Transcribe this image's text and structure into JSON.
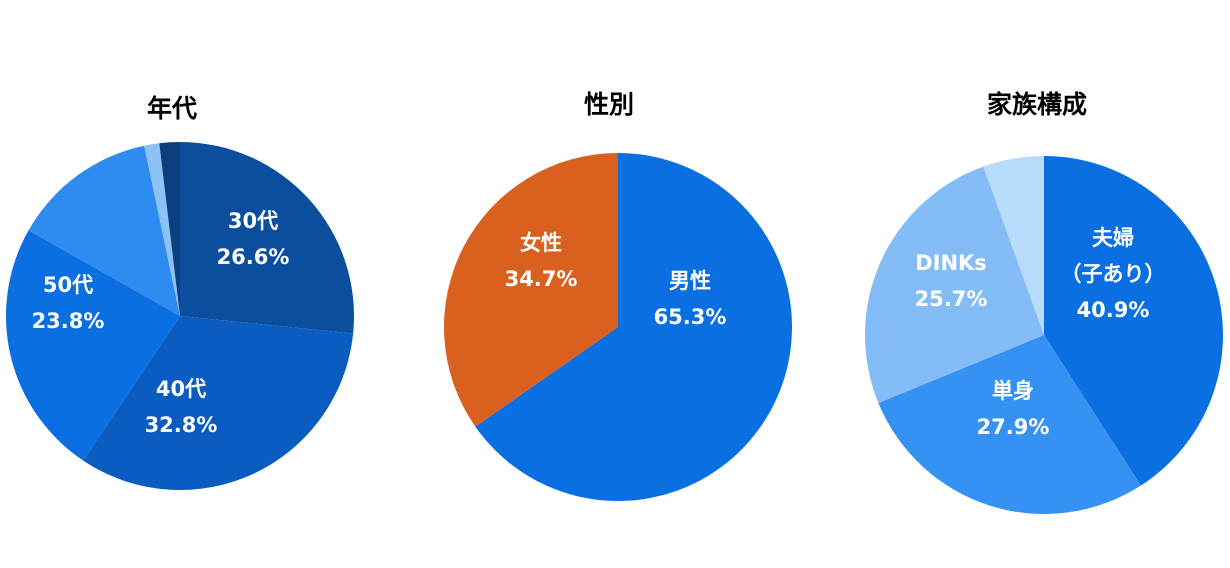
{
  "chart_data": [
    {
      "type": "pie",
      "title": "年代",
      "slices": [
        {
          "label": [
            "30代",
            "26.6%"
          ],
          "value": 26.6,
          "color": "#0B4E9E"
        },
        {
          "label": [
            "40代",
            "32.8%"
          ],
          "value": 32.8,
          "color": "#0A5CC0"
        },
        {
          "label": [
            "50代",
            "23.8%"
          ],
          "value": 23.8,
          "color": "#0A6FE0"
        },
        {
          "label": [],
          "value": 13.5,
          "color": "#2E8BF0"
        },
        {
          "label": [],
          "value": 1.4,
          "color": "#8CC2F8"
        },
        {
          "label": [],
          "value": 1.9,
          "color": "#0B3F80"
        }
      ]
    },
    {
      "type": "pie",
      "title": "性別",
      "slices": [
        {
          "label": [
            "男性",
            "65.3%"
          ],
          "value": 65.3,
          "color": "#0A6FE0"
        },
        {
          "label": [
            "女性",
            "34.7%"
          ],
          "value": 34.7,
          "color": "#D9601E"
        }
      ]
    },
    {
      "type": "pie",
      "title": "家族構成",
      "slices": [
        {
          "label": [
            "夫婦",
            "（子あり）",
            "40.9%"
          ],
          "value": 40.9,
          "color": "#0A6FE0"
        },
        {
          "label": [
            "単身",
            "27.9%"
          ],
          "value": 27.9,
          "color": "#3592F2"
        },
        {
          "label": [
            "DINKs",
            "25.7%"
          ],
          "value": 25.7,
          "color": "#84BCF8"
        },
        {
          "label": [],
          "value": 5.5,
          "color": "#B8DAFB"
        }
      ]
    }
  ]
}
